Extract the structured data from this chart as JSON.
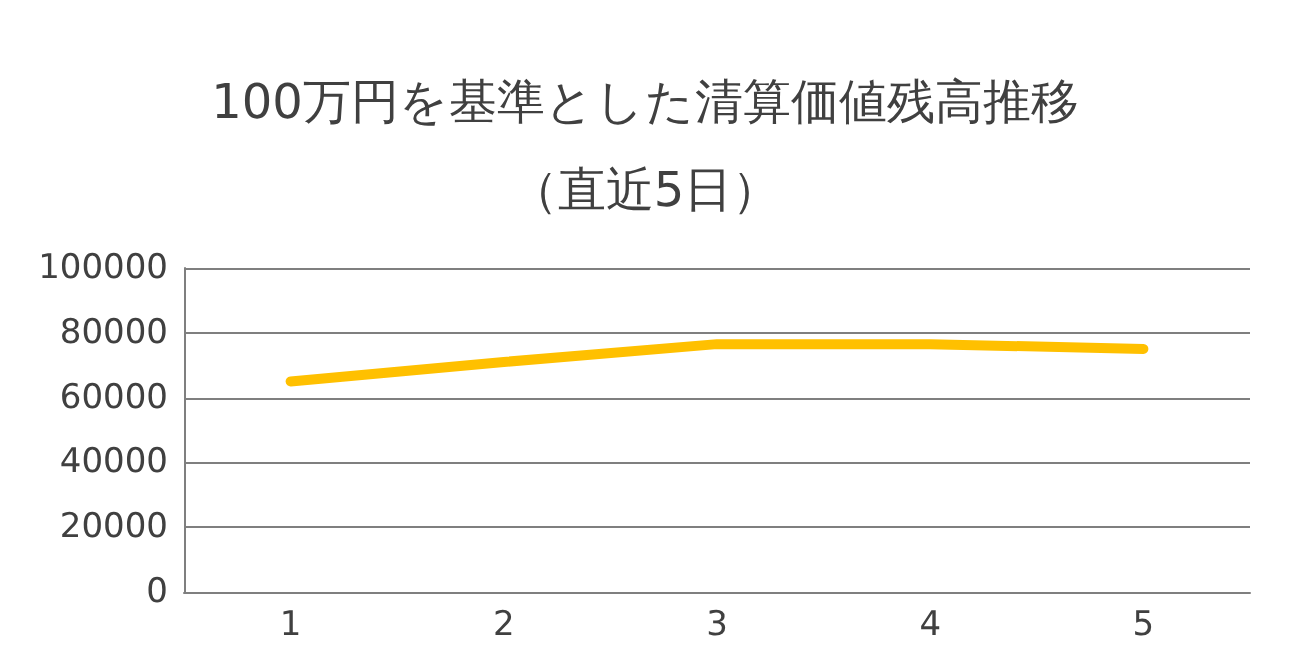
{
  "chart_data": {
    "type": "line",
    "title": "100万円を基準とした清算価値残高推移（直近5日）",
    "categories": [
      "1",
      "2",
      "3",
      "4",
      "5"
    ],
    "series": [
      {
        "color": "#ffc000",
        "values": [
          65000,
          71000,
          76500,
          76500,
          75000
        ]
      }
    ],
    "ylim": [
      0,
      100000
    ],
    "yticks": [
      0,
      20000,
      40000,
      60000,
      80000,
      100000
    ],
    "grid": "y",
    "marker": "none",
    "line_style": "solid"
  }
}
